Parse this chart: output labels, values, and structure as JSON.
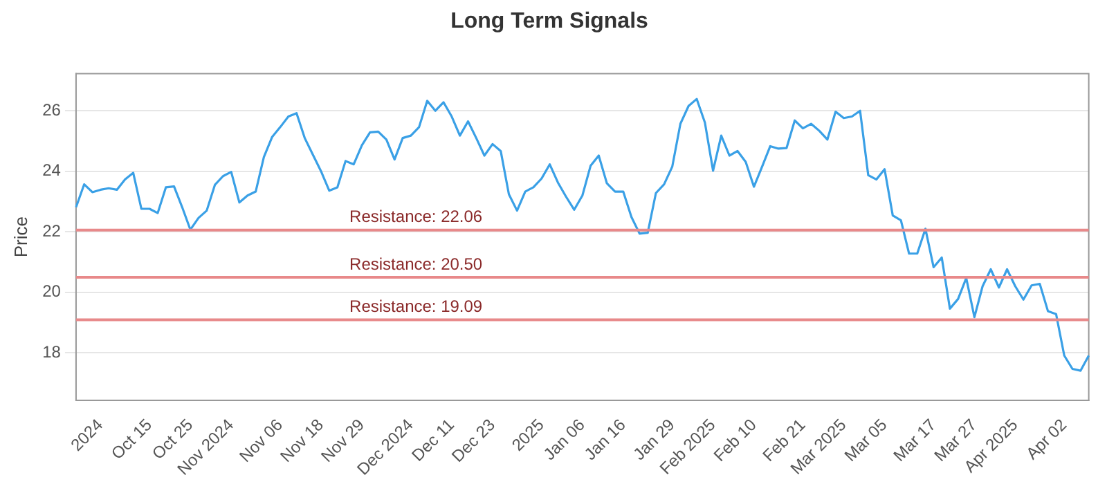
{
  "chart_data": {
    "type": "line",
    "title": "Long Term Signals",
    "ylabel": "Price",
    "categories": [
      null,
      null,
      null,
      "2024",
      null,
      null,
      null,
      null,
      null,
      "Oct 15",
      null,
      null,
      null,
      null,
      "Oct 25",
      null,
      null,
      null,
      null,
      "Nov 2024",
      null,
      null,
      null,
      null,
      null,
      "Nov 06",
      null,
      null,
      null,
      null,
      "Nov 18",
      null,
      null,
      null,
      null,
      "Nov 29",
      null,
      null,
      null,
      null,
      null,
      "Dec 2024",
      null,
      null,
      null,
      null,
      "Dec 11",
      null,
      null,
      null,
      null,
      "Dec 23",
      null,
      null,
      null,
      null,
      null,
      "2025",
      null,
      null,
      null,
      null,
      "Jan 06",
      null,
      null,
      null,
      null,
      "Jan 16",
      null,
      null,
      null,
      null,
      null,
      "Jan 29",
      null,
      null,
      null,
      null,
      "Feb 2025",
      null,
      null,
      null,
      null,
      "Feb 10",
      null,
      null,
      null,
      null,
      null,
      "Feb 21",
      null,
      null,
      null,
      null,
      "Mar 2025",
      null,
      null,
      null,
      null,
      "Mar 05",
      null,
      null,
      null,
      null,
      null,
      "Mar 17",
      null,
      null,
      null,
      null,
      "Mar 27",
      null,
      null,
      null,
      null,
      "Apr 2025",
      null,
      null,
      null,
      null,
      null,
      "Apr 02",
      null,
      null,
      null
    ],
    "series": [
      {
        "color": "#3aa0e6",
        "values": [
          22.81,
          23.57,
          23.31,
          23.39,
          23.44,
          23.39,
          23.73,
          23.95,
          22.76,
          22.76,
          22.62,
          23.47,
          23.5,
          22.81,
          22.07,
          22.46,
          22.7,
          23.55,
          23.84,
          23.98,
          22.97,
          23.2,
          23.33,
          24.47,
          25.13,
          25.46,
          25.81,
          25.92,
          25.1,
          24.55,
          24.0,
          23.36,
          23.47,
          24.34,
          24.23,
          24.86,
          25.29,
          25.31,
          25.05,
          24.39,
          25.1,
          25.18,
          25.46,
          26.33,
          26.0,
          26.28,
          25.81,
          25.18,
          25.65,
          25.1,
          24.52,
          24.9,
          24.67,
          23.24,
          22.7,
          23.33,
          23.47,
          23.76,
          24.23,
          23.63,
          23.16,
          22.73,
          23.2,
          24.18,
          24.52,
          23.6,
          23.33,
          23.33,
          22.49,
          21.94,
          21.97,
          23.28,
          23.57,
          24.15,
          25.57,
          26.16,
          26.39,
          25.61,
          24.02,
          25.18,
          24.52,
          24.67,
          24.31,
          23.49,
          24.15,
          24.83,
          24.75,
          24.77,
          25.68,
          25.42,
          25.57,
          25.34,
          25.05,
          25.97,
          25.76,
          25.81,
          26.0,
          23.87,
          23.73,
          24.07,
          22.54,
          22.38,
          21.28,
          21.28,
          22.1,
          20.83,
          21.15,
          19.46,
          19.78,
          20.47,
          19.18,
          20.2,
          20.76,
          20.16,
          20.76,
          20.2,
          19.76,
          20.23,
          20.28,
          19.38,
          19.28,
          17.91,
          17.47,
          17.41,
          17.91
        ]
      }
    ],
    "ylim": [
      16.43,
      27.23
    ],
    "yticks": [
      18,
      20,
      22,
      24,
      26
    ],
    "grid": "y",
    "legend": false,
    "marker": "none",
    "line_style": "solid",
    "ref_lines": [
      {
        "axis": "y",
        "value": 22.06,
        "label": "Resistance: 22.06",
        "color": "#e8898a"
      },
      {
        "axis": "y",
        "value": 20.5,
        "label": "Resistance: 20.50",
        "color": "#e8898a"
      },
      {
        "axis": "y",
        "value": 19.09,
        "label": "Resistance: 19.09",
        "color": "#e8898a"
      }
    ]
  }
}
